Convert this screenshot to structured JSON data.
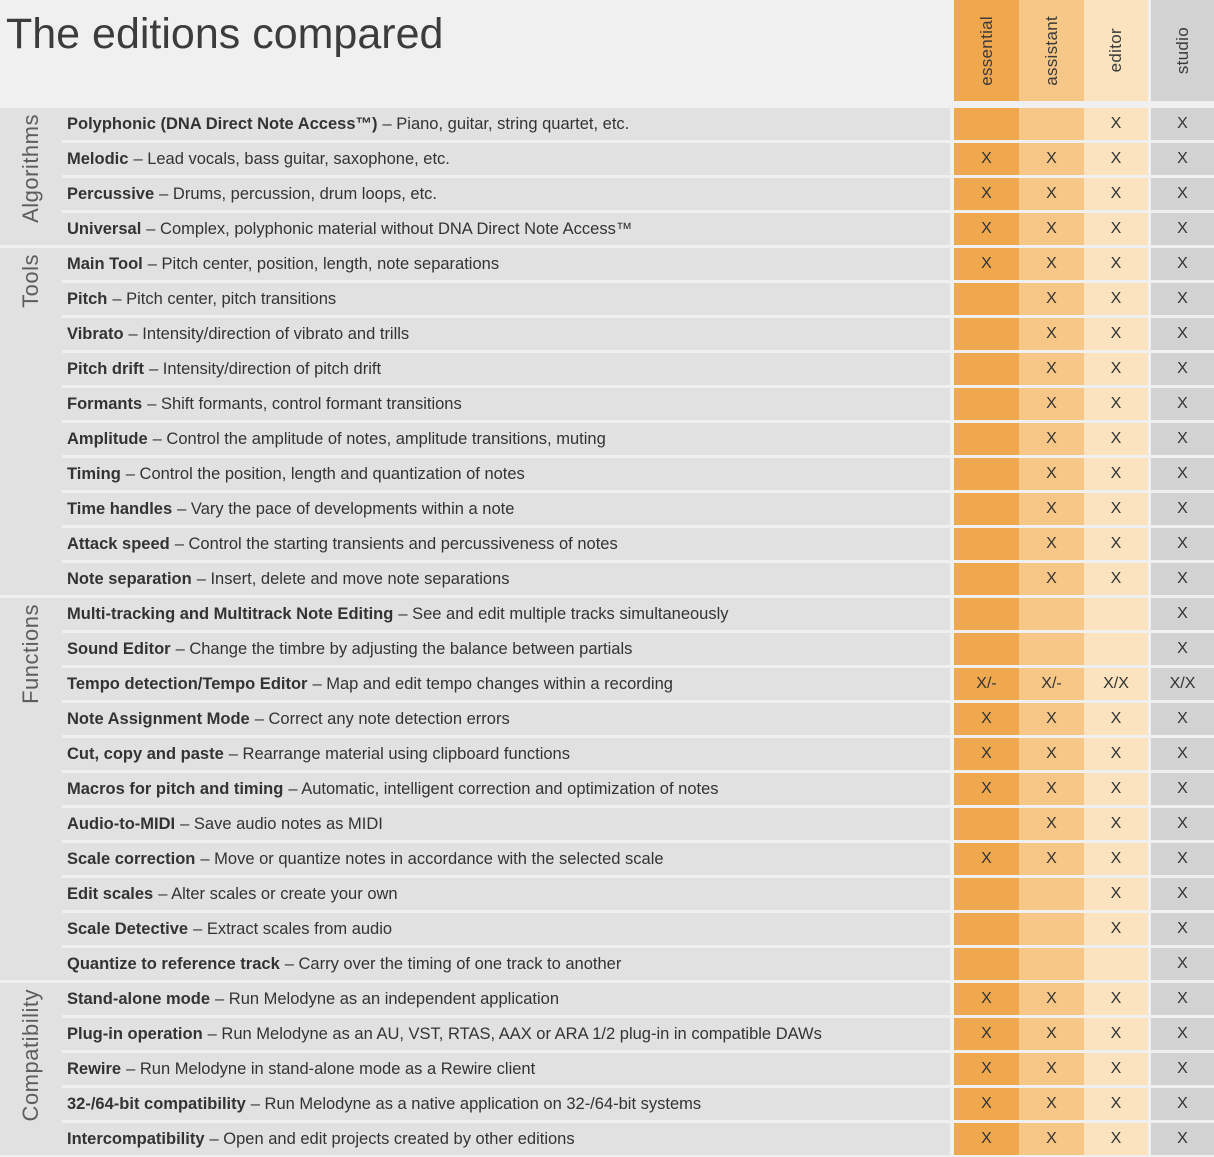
{
  "title": "The editions compared",
  "columns": [
    {
      "label": "essential",
      "color": "#F0A84F"
    },
    {
      "label": "assistant",
      "color": "#F6C787"
    },
    {
      "label": "editor",
      "color": "#FAE3BE"
    },
    {
      "label": "studio",
      "color": "#D2D2D2"
    }
  ],
  "mark": "X",
  "sections": [
    {
      "label": "Algorithms",
      "rows": [
        {
          "term": "Polyphonic (DNA Direct Note Access™)",
          "desc": "– Piano, guitar, string quartet, etc.",
          "cells": [
            "",
            "",
            "X",
            "X"
          ]
        },
        {
          "term": "Melodic",
          "desc": "– Lead vocals, bass guitar, saxophone, etc.",
          "cells": [
            "X",
            "X",
            "X",
            "X"
          ]
        },
        {
          "term": "Percussive",
          "desc": "– Drums, percussion, drum loops, etc.",
          "cells": [
            "X",
            "X",
            "X",
            "X"
          ]
        },
        {
          "term": "Universal",
          "desc": "– Complex, polyphonic material without DNA Direct Note Access™",
          "cells": [
            "X",
            "X",
            "X",
            "X"
          ]
        }
      ]
    },
    {
      "label": "Tools",
      "rows": [
        {
          "term": "Main Tool",
          "desc": "– Pitch center, position, length, note separations",
          "cells": [
            "X",
            "X",
            "X",
            "X"
          ]
        },
        {
          "term": "Pitch",
          "desc": "– Pitch center, pitch transitions",
          "cells": [
            "",
            "X",
            "X",
            "X"
          ]
        },
        {
          "term": "Vibrato",
          "desc": "– Intensity/direction of vibrato and trills",
          "cells": [
            "",
            "X",
            "X",
            "X"
          ]
        },
        {
          "term": "Pitch drift",
          "desc": "– Intensity/direction of pitch drift",
          "cells": [
            "",
            "X",
            "X",
            "X"
          ]
        },
        {
          "term": "Formants",
          "desc": "– Shift formants, control formant transitions",
          "cells": [
            "",
            "X",
            "X",
            "X"
          ]
        },
        {
          "term": "Amplitude",
          "desc": "– Control the amplitude of notes, amplitude transitions, muting",
          "cells": [
            "",
            "X",
            "X",
            "X"
          ]
        },
        {
          "term": "Timing",
          "desc": "– Control the position, length and quantization of notes",
          "cells": [
            "",
            "X",
            "X",
            "X"
          ]
        },
        {
          "term": "Time handles",
          "desc": "– Vary the pace of developments within a note",
          "cells": [
            "",
            "X",
            "X",
            "X"
          ]
        },
        {
          "term": "Attack speed",
          "desc": "– Control the starting transients and percussiveness of notes",
          "cells": [
            "",
            "X",
            "X",
            "X"
          ]
        },
        {
          "term": "Note separation",
          "desc": "– Insert, delete and move note separations",
          "cells": [
            "",
            "X",
            "X",
            "X"
          ]
        }
      ]
    },
    {
      "label": "Functions",
      "rows": [
        {
          "term": "Multi-tracking and Multitrack Note Editing",
          "desc": "– See and edit multiple tracks simultaneously",
          "cells": [
            "",
            "",
            "",
            "X"
          ]
        },
        {
          "term": "Sound Editor",
          "desc": "– Change the timbre by adjusting the balance between partials",
          "cells": [
            "",
            "",
            "",
            "X"
          ]
        },
        {
          "term": "Tempo detection/Tempo Editor",
          "desc": "– Map and edit tempo changes within a recording",
          "cells": [
            "X/-",
            "X/-",
            "X/X",
            "X/X"
          ]
        },
        {
          "term": "Note Assignment Mode",
          "desc": "– Correct any note detection errors",
          "cells": [
            "X",
            "X",
            "X",
            "X"
          ]
        },
        {
          "term": "Cut, copy and paste",
          "desc": "– Rearrange material using clipboard functions",
          "cells": [
            "X",
            "X",
            "X",
            "X"
          ]
        },
        {
          "term": "Macros for pitch and timing",
          "desc": "– Automatic, intelligent correction and optimization of notes",
          "cells": [
            "X",
            "X",
            "X",
            "X"
          ]
        },
        {
          "term": "Audio-to-MIDI",
          "desc": "– Save audio notes as MIDI",
          "cells": [
            "",
            "X",
            "X",
            "X"
          ]
        },
        {
          "term": "Scale correction",
          "desc": "– Move or quantize notes in accordance with the selected scale",
          "cells": [
            "X",
            "X",
            "X",
            "X"
          ]
        },
        {
          "term": "Edit scales",
          "desc": "– Alter scales or create your own",
          "cells": [
            "",
            "",
            "X",
            "X"
          ]
        },
        {
          "term": "Scale Detective",
          "desc": "– Extract scales from audio",
          "cells": [
            "",
            "",
            "X",
            "X"
          ]
        },
        {
          "term": "Quantize to reference track",
          "desc": "– Carry over the timing of one track to another",
          "cells": [
            "",
            "",
            "",
            "X"
          ]
        }
      ]
    },
    {
      "label": "Compatibility",
      "rows": [
        {
          "term": "Stand-alone mode",
          "desc": "– Run Melodyne as an independent application",
          "cells": [
            "X",
            "X",
            "X",
            "X"
          ]
        },
        {
          "term": "Plug-in operation",
          "desc": "– Run Melodyne as an AU, VST, RTAS, AAX or ARA 1/2 plug-in in compatible DAWs",
          "cells": [
            "X",
            "X",
            "X",
            "X"
          ]
        },
        {
          "term": "Rewire",
          "desc": "– Run Melodyne in stand-alone mode as a Rewire client",
          "cells": [
            "X",
            "X",
            "X",
            "X"
          ]
        },
        {
          "term": "32-/64-bit compatibility",
          "desc": "– Run Melodyne as a native application on 32-/64-bit systems",
          "cells": [
            "X",
            "X",
            "X",
            "X"
          ]
        },
        {
          "term": "Intercompatibility",
          "desc": "– Open and edit projects created by other editions",
          "cells": [
            "X",
            "X",
            "X",
            "X"
          ]
        }
      ]
    }
  ]
}
